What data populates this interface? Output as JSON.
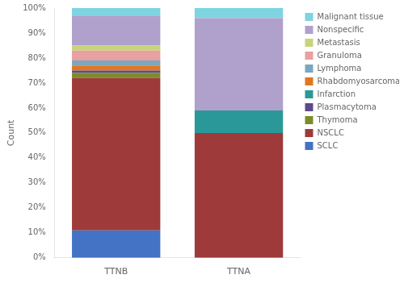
{
  "chart_data": {
    "type": "bar",
    "stacked": true,
    "categories": [
      "TTNB",
      "TTNA"
    ],
    "series": [
      {
        "name": "SCLC",
        "color": "#4472C4",
        "values": [
          11,
          0
        ]
      },
      {
        "name": "NSCLC",
        "color": "#9E3A3A",
        "values": [
          61,
          50
        ]
      },
      {
        "name": "Thymoma",
        "color": "#7B8C2A",
        "values": [
          2,
          0
        ]
      },
      {
        "name": "Plasmacytoma",
        "color": "#5C4A8A",
        "values": [
          1,
          0
        ]
      },
      {
        "name": "Rhabdomyosarcoma",
        "color": "#E07820",
        "values": [
          2,
          0
        ]
      },
      {
        "name": "Lymphoma",
        "color": "#7BA7C0",
        "values": [
          2,
          0
        ]
      },
      {
        "name": "Granuloma",
        "color": "#E8A0A0",
        "values": [
          4,
          0
        ]
      },
      {
        "name": "Metastasis",
        "color": "#C8D47A",
        "values": [
          2,
          0
        ]
      },
      {
        "name": "Infarction",
        "color": "#2A9898",
        "values": [
          0,
          9
        ]
      },
      {
        "name": "Nonspecific",
        "color": "#B0A0CC",
        "values": [
          12,
          37
        ]
      },
      {
        "name": "Malignant tissue",
        "color": "#7ED4E0",
        "values": [
          3,
          4
        ]
      }
    ],
    "legend_order": [
      "Malignant tissue",
      "Nonspecific",
      "Metastasis",
      "Granuloma",
      "Lymphoma",
      "Rhabdomyosarcoma",
      "Infarction",
      "Plasmacytoma",
      "Thymoma",
      "NSCLC",
      "SCLC"
    ],
    "ylabel": "Count",
    "ylim": [
      0,
      100
    ],
    "yticks": [
      {
        "value": 0,
        "label": "0%"
      },
      {
        "value": 10,
        "label": "10%"
      },
      {
        "value": 20,
        "label": "20%"
      },
      {
        "value": 30,
        "label": "30%"
      },
      {
        "value": 40,
        "label": "40%"
      },
      {
        "value": 50,
        "label": "50%"
      },
      {
        "value": 60,
        "label": "60%"
      },
      {
        "value": 70,
        "label": "70%"
      },
      {
        "value": 80,
        "label": "80%"
      },
      {
        "value": 90,
        "label": "90%"
      },
      {
        "value": 100,
        "label": "100%"
      }
    ],
    "grid": false,
    "legend": "right"
  }
}
